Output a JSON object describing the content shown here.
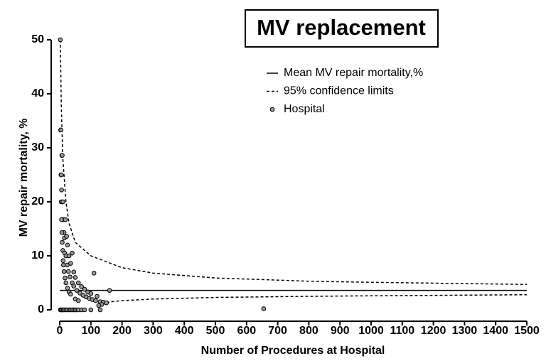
{
  "chart_data": {
    "type": "scatter",
    "title": "MV replacement",
    "x_label": "Number of Procedures at Hospital",
    "y_label": "MV repair mortality, %",
    "xlim": [
      0,
      1500
    ],
    "ylim": [
      0,
      50
    ],
    "xticks": [
      0,
      100,
      200,
      300,
      400,
      500,
      600,
      700,
      800,
      900,
      1000,
      1100,
      1200,
      1300,
      1400,
      1500
    ],
    "yticks": [
      0,
      10,
      20,
      30,
      40,
      50
    ],
    "legend": "top-right",
    "series": [
      {
        "name": "Mean MV repair mortality,%",
        "type": "line",
        "dash": "solid",
        "color": "#000000",
        "x": [
          0,
          1500
        ],
        "values": [
          3.6,
          3.6
        ]
      },
      {
        "name": "95% confidence limits",
        "type": "line",
        "dash": "dashed",
        "color": "#000000",
        "x": [
          2,
          5,
          10,
          20,
          30,
          50,
          100,
          200,
          300,
          500,
          800,
          1000,
          1500,
          null,
          150,
          200,
          300,
          500,
          800,
          1000,
          1500
        ],
        "values": [
          50,
          38,
          28,
          20,
          16,
          12.5,
          10,
          7.8,
          6.8,
          5.9,
          5.3,
          5.1,
          4.7,
          null,
          1.4,
          1.7,
          2.0,
          2.3,
          2.5,
          2.6,
          2.8
        ]
      },
      {
        "name": "Hospital",
        "type": "scatter",
        "color": "#999999",
        "x": [
          2,
          3,
          4,
          4,
          5,
          7,
          8,
          6,
          9,
          5,
          10,
          12,
          6,
          18,
          14,
          7,
          15,
          22,
          25,
          8,
          10,
          16,
          20,
          30,
          40,
          11,
          24,
          35,
          12,
          45,
          14,
          28,
          50,
          17,
          33,
          60,
          20,
          40,
          70,
          25,
          45,
          55,
          80,
          30,
          90,
          100,
          35,
          65,
          110,
          120,
          75,
          50,
          85,
          130,
          140,
          160,
          95,
          105,
          60,
          115,
          150,
          135,
          125,
          655,
          2,
          5,
          8,
          12,
          15,
          20,
          25,
          30,
          35,
          40,
          45,
          50,
          55,
          60,
          70,
          80,
          100,
          130
        ],
        "values": [
          50,
          33.3,
          33.3,
          25,
          25,
          28.6,
          28.6,
          22.2,
          20,
          20,
          20,
          16.7,
          16.7,
          16.7,
          14.3,
          14.3,
          13.3,
          13.6,
          12,
          12.5,
          11,
          10.5,
          10,
          10,
          10.5,
          9.1,
          8.3,
          8.6,
          8.3,
          7,
          7.1,
          7.1,
          6,
          5.9,
          6.1,
          5,
          5,
          5,
          4.3,
          4,
          4.4,
          3.6,
          3.8,
          3.3,
          3.3,
          3,
          2.9,
          3.1,
          6.8,
          2.5,
          2.7,
          2,
          2.4,
          1.5,
          1.4,
          3.6,
          2.1,
          1.9,
          1.7,
          1.7,
          1.3,
          1.0,
          0.8,
          0.2,
          0,
          0,
          0,
          0,
          0,
          0,
          0,
          0,
          0,
          0,
          0,
          0,
          0,
          0,
          0,
          0,
          0,
          0
        ]
      }
    ]
  }
}
